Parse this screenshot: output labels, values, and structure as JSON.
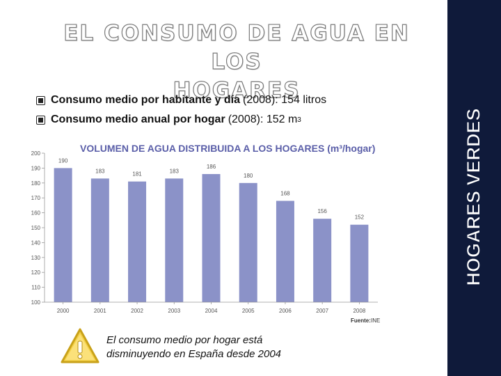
{
  "slide": {
    "title_line1": "EL CONSUMO DE AGUA EN LOS",
    "title_line2": "HOGARES",
    "sidebar_label": "HOGARES VERDES",
    "bullet1": {
      "bold": "Consumo medio por habitante y día",
      "rest": "(2008): 154 litros"
    },
    "bullet2": {
      "bold": "Consumo medio anual por hogar",
      "rest": "(2008): 152 m",
      "sup": "3"
    },
    "callout": "El consumo medio por hogar está disminuyendo en España desde 2004"
  },
  "colors": {
    "bar": "#8b92c8",
    "title": "#5a5ea8",
    "sidebar": "#0f1a3a"
  },
  "chart_data": {
    "type": "bar",
    "title": "VOLUMEN DE AGUA DISTRIBUIDA A LOS HOGARES (m³/hogar)",
    "categories": [
      "2000",
      "2001",
      "2002",
      "2003",
      "2004",
      "2005",
      "2006",
      "2007",
      "2008"
    ],
    "values": [
      190,
      183,
      181,
      183,
      186,
      180,
      168,
      156,
      152
    ],
    "data_labels": [
      "190",
      "183",
      "181",
      "183",
      "186",
      "180",
      "168",
      "156",
      "152"
    ],
    "ylim": [
      100,
      200
    ],
    "yticks": [
      100,
      110,
      120,
      130,
      140,
      150,
      160,
      170,
      180,
      190,
      200
    ],
    "source_label": "Fuente:",
    "source_value": "INE"
  }
}
